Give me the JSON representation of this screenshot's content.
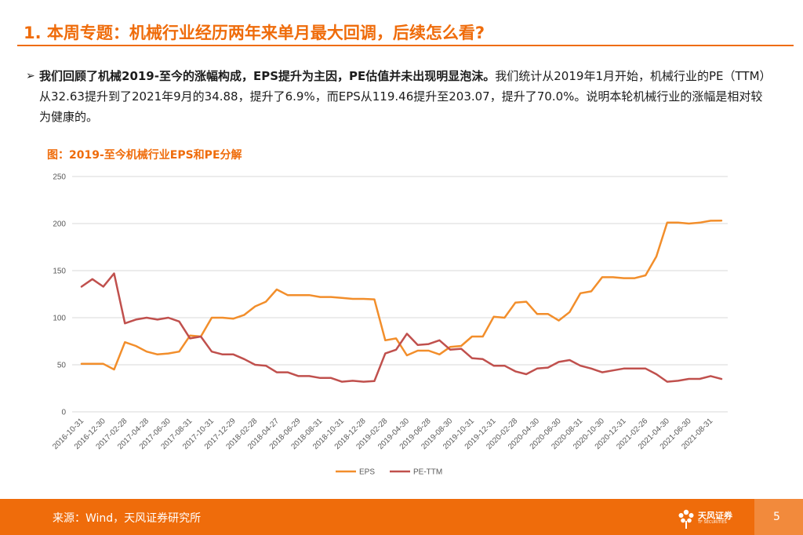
{
  "heading": {
    "title": "1. 本周专题：机械行业经历两年来单月最大回调，后续怎么看?"
  },
  "paragraph": {
    "bullet": "➢",
    "lead": "我们回顾了机械2019-至今的涨幅构成，EPS提升为主因，PE估值并未出现明显泡沫。",
    "body": "我们统计从2019年1月开始，机械行业的PE（TTM）从32.63提升到了2021年9月的34.88，提升了6.9%，而EPS从119.46提升至203.07，提升了70.0%。说明本轮机械行业的涨幅是相对较为健康的。"
  },
  "chart_title": "图：2019-至今机械行业EPS和PE分解",
  "chart_data": {
    "type": "line",
    "title": "图：2019-至今机械行业EPS和PE分解",
    "xlabel": "",
    "ylabel": "",
    "ylim": [
      0,
      250
    ],
    "yticks": [
      0,
      50,
      100,
      150,
      200,
      250
    ],
    "grid": true,
    "legend_position": "bottom",
    "x": [
      "2016-10-31",
      "2016-11-30",
      "2016-12-30",
      "2017-01-26",
      "2017-02-28",
      "2017-03-31",
      "2017-04-28",
      "2017-05-31",
      "2017-06-30",
      "2017-07-31",
      "2017-08-31",
      "2017-09-29",
      "2017-10-31",
      "2017-11-30",
      "2017-12-29",
      "2018-01-31",
      "2018-02-28",
      "2018-03-30",
      "2018-04-27",
      "2018-05-31",
      "2018-06-29",
      "2018-07-31",
      "2018-08-31",
      "2018-09-28",
      "2018-10-31",
      "2018-11-30",
      "2018-12-28",
      "2019-01-31",
      "2019-02-28",
      "2019-03-29",
      "2019-04-30",
      "2019-05-31",
      "2019-06-28",
      "2019-07-31",
      "2019-08-30",
      "2019-09-30",
      "2019-10-31",
      "2019-11-29",
      "2019-12-31",
      "2020-01-23",
      "2020-02-28",
      "2020-03-31",
      "2020-04-30",
      "2020-05-29",
      "2020-06-30",
      "2020-07-31",
      "2020-08-31",
      "2020-09-30",
      "2020-10-30",
      "2020-11-30",
      "2020-12-31",
      "2021-01-29",
      "2021-02-26",
      "2021-03-31",
      "2021-04-30",
      "2021-05-31",
      "2021-06-30",
      "2021-07-30",
      "2021-08-31",
      "2021-09-30"
    ],
    "xtick_labels": [
      "2016-10-31",
      "2016-12-30",
      "2017-02-28",
      "2017-04-28",
      "2017-06-30",
      "2017-08-31",
      "2017-10-31",
      "2017-12-29",
      "2018-02-28",
      "2018-04-27",
      "2018-06-29",
      "2018-08-31",
      "2018-10-31",
      "2018-12-28",
      "2019-02-28",
      "2019-04-30",
      "2019-06-28",
      "2019-08-30",
      "2019-10-31",
      "2019-12-31",
      "2020-02-28",
      "2020-04-30",
      "2020-06-30",
      "2020-08-31",
      "2020-10-30",
      "2020-12-31",
      "2021-02-26",
      "2021-04-30",
      "2021-06-30",
      "2021-08-31"
    ],
    "series": [
      {
        "name": "EPS",
        "color": "#f28e2b",
        "values": [
          51,
          51,
          51,
          45,
          74,
          70,
          64,
          61,
          62,
          64,
          81,
          80,
          100,
          100,
          99,
          103,
          112,
          117,
          130,
          124,
          124,
          124,
          122,
          122,
          121,
          120,
          120,
          119.46,
          76,
          78,
          60,
          65,
          65,
          61,
          69,
          70,
          80,
          80,
          101,
          100,
          116,
          117,
          104,
          104,
          97,
          106,
          126,
          128,
          143,
          143,
          142,
          142,
          145,
          165,
          201,
          201,
          200,
          201,
          203,
          203.07
        ]
      },
      {
        "name": "PE-TTM",
        "color": "#c0504d",
        "values": [
          133,
          141,
          133,
          147,
          94,
          98,
          100,
          98,
          100,
          96,
          78,
          80,
          64,
          61,
          61,
          56,
          50,
          49,
          42,
          42,
          38,
          38,
          36,
          36,
          32,
          33,
          32,
          32.63,
          62,
          66,
          83,
          71,
          72,
          76,
          66,
          67,
          57,
          56,
          49,
          49,
          43,
          40,
          46,
          47,
          53,
          55,
          49,
          46,
          42,
          44,
          46,
          46,
          46,
          40,
          32,
          33,
          35,
          35,
          38,
          34.88
        ]
      }
    ]
  },
  "footer": {
    "source": "来源：Wind，天风证券研究所",
    "logo_name": "天风证券",
    "logo_sub": "TF SECURITIES",
    "page_number": "5"
  }
}
